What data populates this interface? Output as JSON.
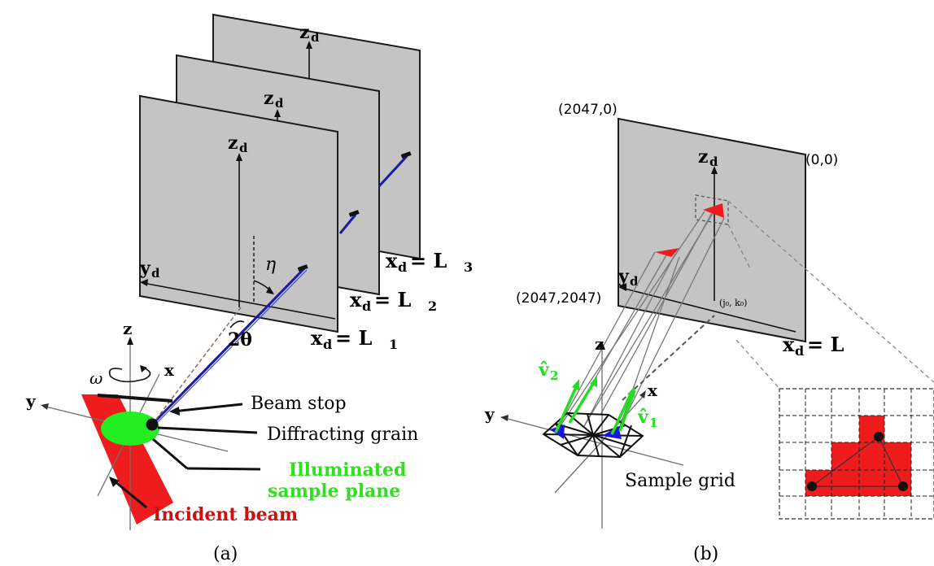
{
  "panel_a": {
    "caption": "(a)",
    "detectors": {
      "z_label": "z",
      "z_sub": "d",
      "y_label": "y",
      "y_sub": "d",
      "x_label": "x",
      "x_sub": "d",
      "eq1": "= L",
      "sub1": "1",
      "eq2": "= L",
      "sub2": "2",
      "eq3": "= L",
      "sub3": "3"
    },
    "angles": {
      "eta": "η",
      "two_theta": "2θ",
      "omega": "ω"
    },
    "axes": {
      "z": "z",
      "x": "x",
      "y": "y"
    },
    "labels": {
      "beam_stop": "Beam stop",
      "diffracting_grain": "Diffracting grain",
      "illuminated_line1": "Illuminated",
      "illuminated_line2": "sample plane",
      "incident_beam": "Incident beam"
    },
    "colors": {
      "beam": "#ee1c1c",
      "grain": "#22ee22",
      "illuminated_text": "#33dd22",
      "incident_text": "#cc1111",
      "ray": "#1a1aa8"
    }
  },
  "panel_b": {
    "caption": "(b)",
    "corners": {
      "top_left": "(2047,0)",
      "top_right": "(0,0)",
      "bottom_left": "(2047,2047)"
    },
    "detector": {
      "z_label": "z",
      "z_sub": "d",
      "y_label": "y",
      "y_sub": "d",
      "x_label": "x",
      "x_sub": "d",
      "eq": "= L"
    },
    "center_label": "(j₀, k₀)",
    "axes": {
      "z": "z",
      "x": "x",
      "y": "y"
    },
    "vectors": {
      "v1": "v̂",
      "v1_sub": "1",
      "v2": "v̂",
      "v2_sub": "2"
    },
    "sample_grid": "Sample grid",
    "colors": {
      "vectors": "#22dd22",
      "triangles": "#1515dd",
      "spots": "#ee1c1c"
    }
  }
}
